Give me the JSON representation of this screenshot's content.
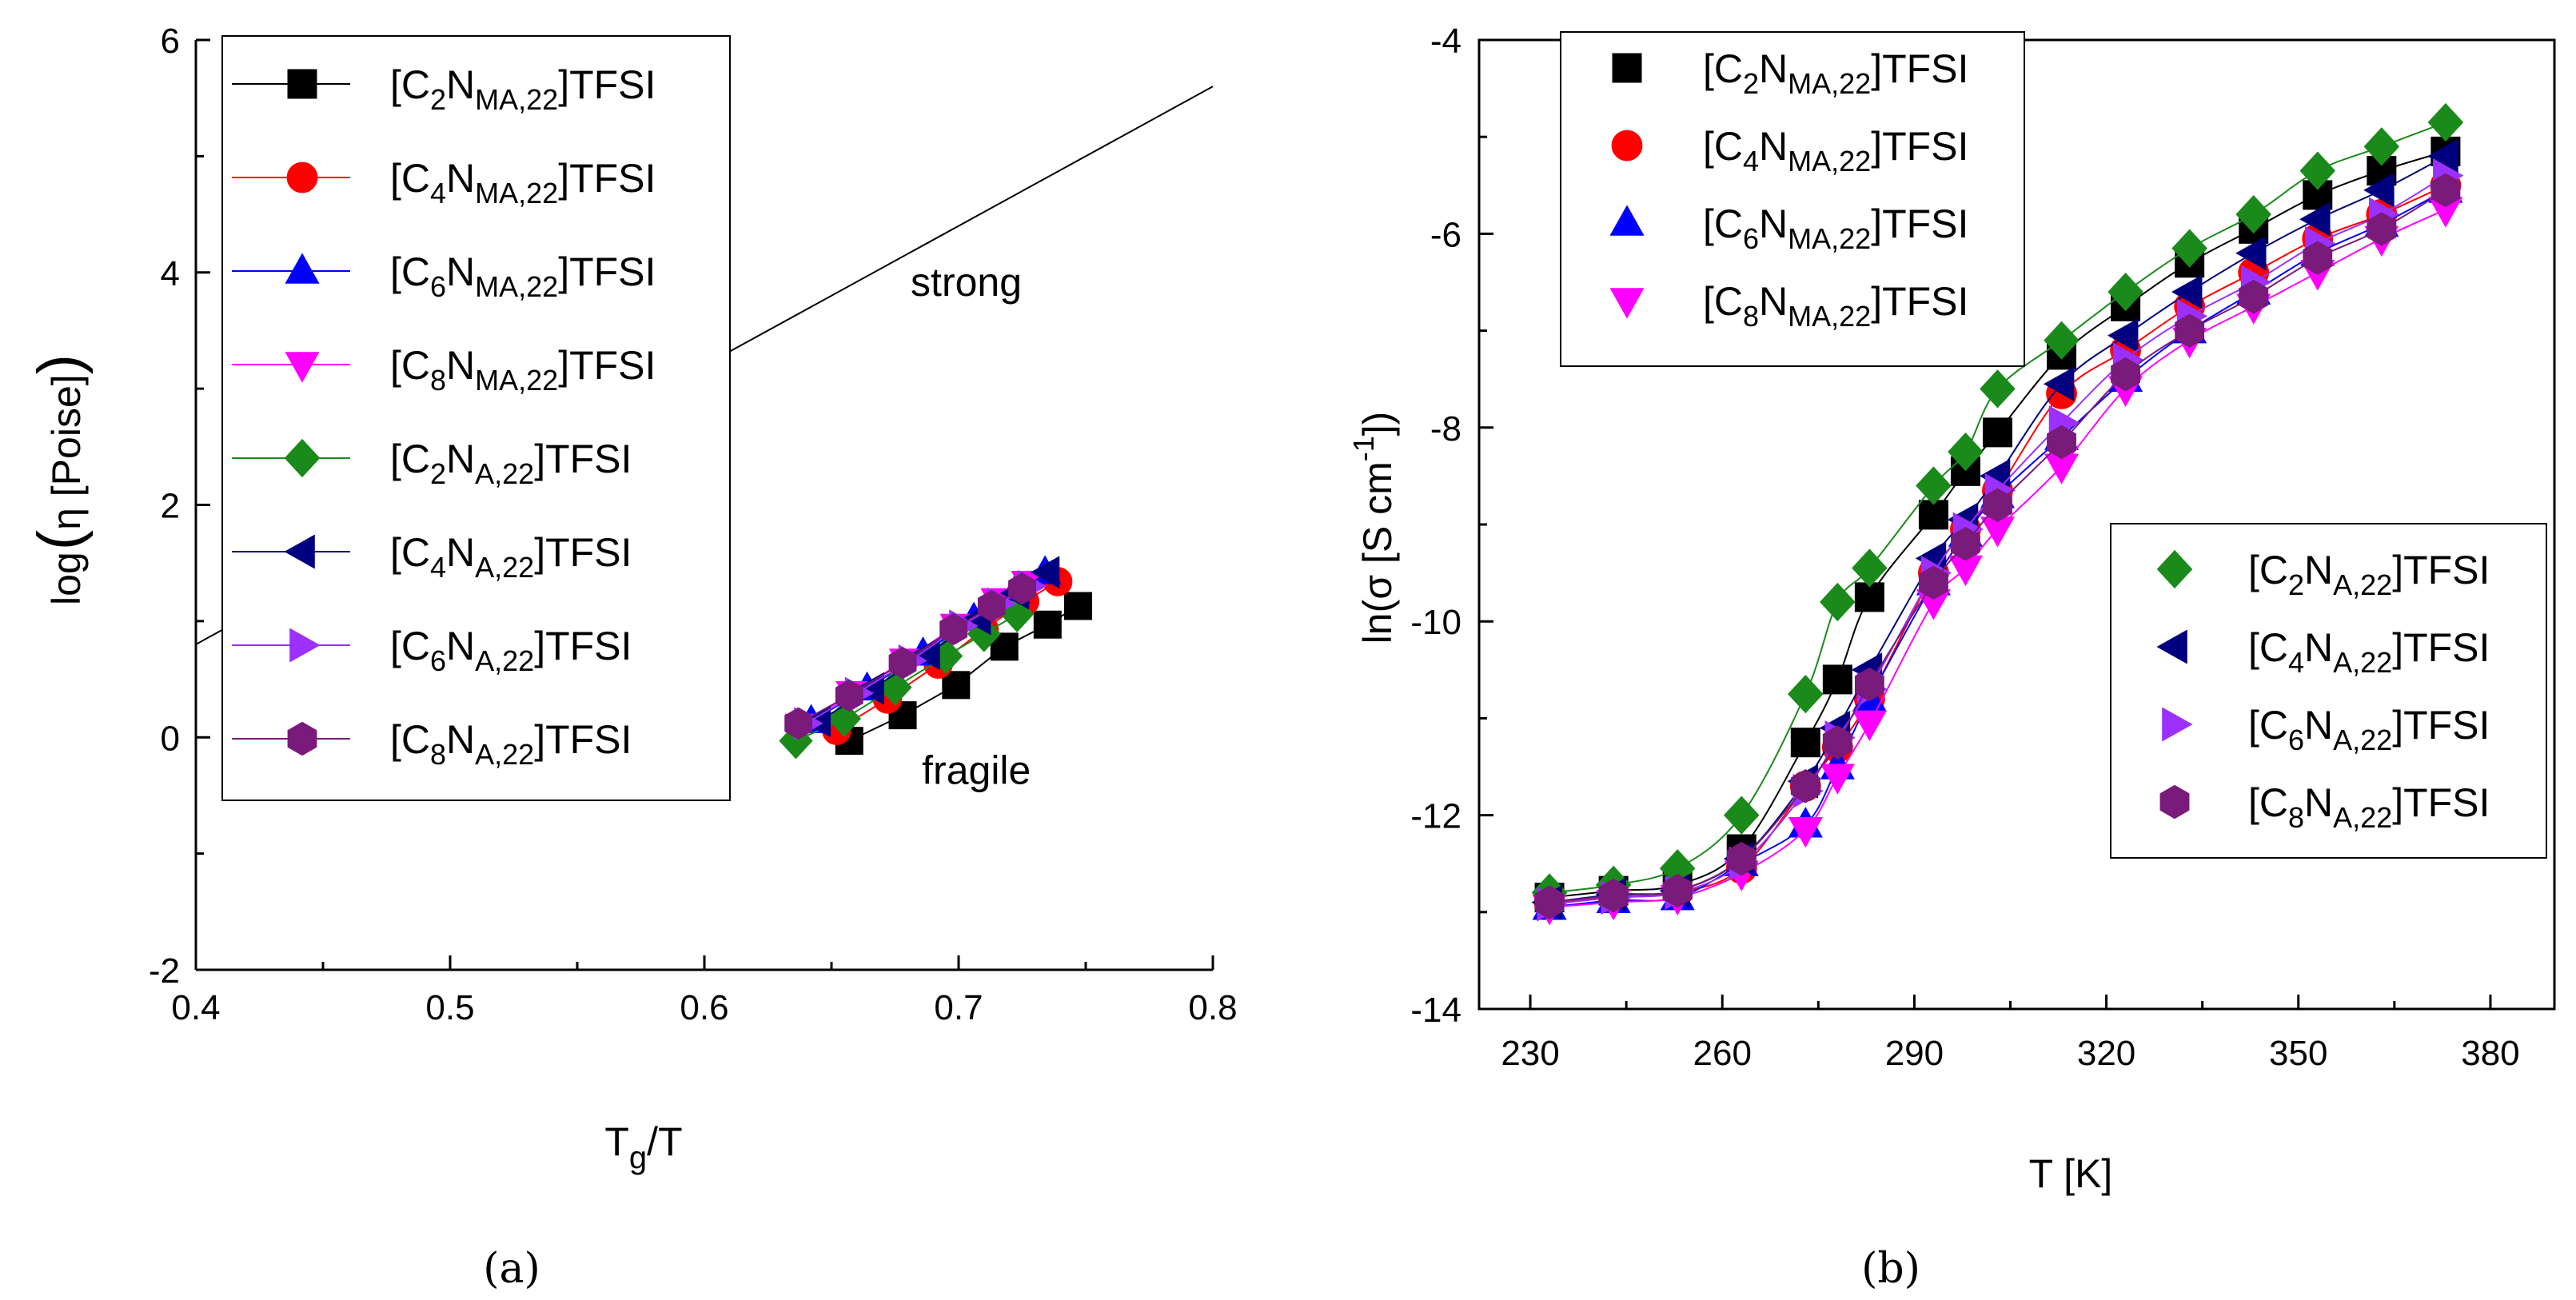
{
  "chart_data": [
    {
      "id": "a",
      "type": "scatter",
      "caption": "(a)",
      "xlabel": {
        "main": "T",
        "sub": "g",
        "rest": "/T"
      },
      "ylabel": {
        "prefix": "log",
        "inner": "η [Poise]"
      },
      "xlim": [
        0.4,
        0.8
      ],
      "ylim": [
        -2,
        6
      ],
      "xticks": [
        "0.4",
        "0.5",
        "0.6",
        "0.7",
        "0.8"
      ],
      "yticks": [
        "-2",
        "0",
        "2",
        "4",
        "6"
      ],
      "legend_position": "top-left",
      "annotations": [
        {
          "text": "strong",
          "x": 0.703,
          "y": 3.8
        },
        {
          "text": "fragile",
          "x": 0.707,
          "y": -0.4
        }
      ],
      "reference_line": {
        "label": "strong limit",
        "points": [
          [
            0.4,
            0.8
          ],
          [
            0.8,
            5.6
          ]
        ]
      },
      "series": [
        {
          "name": "[C2NMA,22]TFSI",
          "pre": "[C",
          "s1": "2",
          "mid": "N",
          "s2": "MA,22",
          "post": "]TFSI",
          "color": "#000000",
          "marker": "square",
          "x": [
            0.657,
            0.678,
            0.699,
            0.718,
            0.735,
            0.747
          ],
          "y": [
            -0.03,
            0.19,
            0.45,
            0.78,
            0.97,
            1.13
          ]
        },
        {
          "name": "[C4NMA,22]TFSI",
          "pre": "[C",
          "s1": "4",
          "mid": "N",
          "s2": "MA,22",
          "post": "]TFSI",
          "color": "#ff0000",
          "marker": "circle",
          "x": [
            0.652,
            0.672,
            0.692,
            0.71,
            0.726,
            0.739
          ],
          "y": [
            0.06,
            0.33,
            0.63,
            0.93,
            1.17,
            1.34
          ]
        },
        {
          "name": "[C6NMA,22]TFSI",
          "pre": "[C",
          "s1": "6",
          "mid": "N",
          "s2": "MA,22",
          "post": "]TFSI",
          "color": "#0000ff",
          "marker": "triangle-up",
          "x": [
            0.642,
            0.664,
            0.686,
            0.706,
            0.722,
            0.734
          ],
          "y": [
            0.14,
            0.42,
            0.72,
            1.02,
            1.25,
            1.42
          ]
        },
        {
          "name": "[C8NMA,22]TFSI",
          "pre": "[C",
          "s1": "8",
          "mid": "N",
          "s2": "MA,22",
          "post": "]TFSI",
          "color": "#ff00ff",
          "marker": "triangle-down",
          "x": [
            0.638,
            0.658,
            0.679,
            0.699,
            0.715,
            0.727
          ],
          "y": [
            0.1,
            0.38,
            0.66,
            0.96,
            1.18,
            1.33
          ]
        },
        {
          "name": "[C2NA,22]TFSI",
          "pre": "[C",
          "s1": "2",
          "mid": "N",
          "s2": "A,22",
          "post": "]TFSI",
          "color": "#1a8a1a",
          "marker": "diamond",
          "x": [
            0.636,
            0.655,
            0.675,
            0.695,
            0.71,
            0.723
          ],
          "y": [
            -0.03,
            0.16,
            0.43,
            0.7,
            0.89,
            1.06
          ]
        },
        {
          "name": "[C4NA,22]TFSI",
          "pre": "[C",
          "s1": "4",
          "mid": "N",
          "s2": "A,22",
          "post": "]TFSI",
          "color": "#000080",
          "marker": "triangle-left",
          "x": [
            0.645,
            0.666,
            0.688,
            0.708,
            0.723,
            0.735
          ],
          "y": [
            0.14,
            0.42,
            0.72,
            1.02,
            1.24,
            1.42
          ]
        },
        {
          "name": "[C6NA,22]TFSI",
          "pre": "[C",
          "s1": "6",
          "mid": "N",
          "s2": "A,22",
          "post": "]TFSI",
          "color": "#9b30ff",
          "marker": "triangle-right",
          "x": [
            0.64,
            0.66,
            0.681,
            0.701,
            0.716,
            0.728
          ],
          "y": [
            0.12,
            0.38,
            0.66,
            0.96,
            1.15,
            1.3
          ]
        },
        {
          "name": "[C8NA,22]TFSI",
          "pre": "[C",
          "s1": "8",
          "mid": "N",
          "s2": "A,22",
          "post": "]TFSI",
          "color": "#7a1a7a",
          "marker": "hexagon",
          "x": [
            0.637,
            0.657,
            0.678,
            0.698,
            0.713,
            0.725
          ],
          "y": [
            0.12,
            0.36,
            0.64,
            0.93,
            1.13,
            1.28
          ]
        }
      ]
    },
    {
      "id": "b",
      "type": "scatter",
      "caption": "(b)",
      "xlabel": {
        "text": "T [K]"
      },
      "ylabel": {
        "pre": "ln(σ [S cm",
        "sup": "-1",
        "post": "])"
      },
      "xlim": [
        222,
        390
      ],
      "ylim": [
        -14,
        -4
      ],
      "xticks": [
        "230",
        "260",
        "290",
        "320",
        "350",
        "380"
      ],
      "yticks": [
        "-14",
        "-12",
        "-10",
        "-8",
        "-6",
        "-4"
      ],
      "legend_positions": [
        "top-left",
        "middle-right"
      ],
      "x": [
        233,
        243,
        253,
        263,
        273,
        278,
        283,
        293,
        298,
        303,
        313,
        323,
        333,
        343,
        353,
        363,
        373
      ],
      "series": [
        {
          "name": "[C2NMA,22]TFSI",
          "pre": "[C",
          "s1": "2",
          "mid": "N",
          "s2": "MA,22",
          "post": "]TFSI",
          "color": "#000000",
          "marker": "square",
          "y": [
            -12.85,
            -12.78,
            -12.72,
            -12.35,
            -11.25,
            -10.6,
            -9.75,
            -8.9,
            -8.45,
            -8.05,
            -7.25,
            -6.75,
            -6.3,
            -5.95,
            -5.6,
            -5.35,
            -5.15
          ]
        },
        {
          "name": "[C4NMA,22]TFSI",
          "pre": "[C",
          "s1": "4",
          "mid": "N",
          "s2": "MA,22",
          "post": "]TFSI",
          "color": "#ff0000",
          "marker": "circle",
          "y": [
            -12.9,
            -12.85,
            -12.8,
            -12.55,
            -11.7,
            -11.3,
            -10.8,
            -9.5,
            -9.05,
            -8.65,
            -7.65,
            -7.2,
            -6.75,
            -6.4,
            -6.05,
            -5.8,
            -5.5
          ]
        },
        {
          "name": "[C6NMA,22]TFSI",
          "pre": "[C",
          "s1": "6",
          "mid": "N",
          "s2": "MA,22",
          "post": "]TFSI",
          "color": "#0000ff",
          "marker": "triangle-up",
          "y": [
            -12.95,
            -12.88,
            -12.85,
            -12.5,
            -12.1,
            -11.5,
            -10.8,
            -9.6,
            -9.1,
            -8.7,
            -8.1,
            -7.5,
            -7.0,
            -6.6,
            -6.2,
            -5.9,
            -5.55
          ]
        },
        {
          "name": "[C8NMA,22]TFSI",
          "pre": "[C",
          "s1": "8",
          "mid": "N",
          "s2": "MA,22",
          "post": "]TFSI",
          "color": "#ff00ff",
          "marker": "triangle-down",
          "y": [
            -12.95,
            -12.9,
            -12.85,
            -12.6,
            -12.15,
            -11.6,
            -11.05,
            -9.8,
            -9.45,
            -9.05,
            -8.4,
            -7.6,
            -7.1,
            -6.75,
            -6.4,
            -6.05,
            -5.75
          ]
        },
        {
          "name": "[C2NA,22]TFSI",
          "pre": "[C",
          "s1": "2",
          "mid": "N",
          "s2": "A,22",
          "post": "]TFSI",
          "color": "#1a8a1a",
          "marker": "diamond",
          "y": [
            -12.8,
            -12.72,
            -12.55,
            -12.0,
            -10.75,
            -9.8,
            -9.45,
            -8.6,
            -8.25,
            -7.6,
            -7.1,
            -6.6,
            -6.15,
            -5.8,
            -5.35,
            -5.1,
            -4.85
          ]
        },
        {
          "name": "[C4NA,22]TFSI",
          "pre": "[C",
          "s1": "4",
          "mid": "N",
          "s2": "A,22",
          "post": "]TFSI",
          "color": "#000080",
          "marker": "triangle-left",
          "y": [
            -12.9,
            -12.82,
            -12.78,
            -12.45,
            -11.65,
            -11.1,
            -10.5,
            -9.35,
            -8.95,
            -8.5,
            -7.55,
            -7.05,
            -6.6,
            -6.2,
            -5.85,
            -5.55,
            -5.2
          ]
        },
        {
          "name": "[C6NA,22]TFSI",
          "pre": "[C",
          "s1": "6",
          "mid": "N",
          "s2": "A,22",
          "post": "]TFSI",
          "color": "#9b30ff",
          "marker": "triangle-right",
          "y": [
            -12.92,
            -12.85,
            -12.8,
            -12.5,
            -11.75,
            -11.2,
            -10.7,
            -9.5,
            -9.05,
            -8.65,
            -7.95,
            -7.3,
            -6.85,
            -6.5,
            -6.1,
            -5.8,
            -5.4
          ]
        },
        {
          "name": "[C8NA,22]TFSI",
          "pre": "[C",
          "s1": "8",
          "mid": "N",
          "s2": "A,22",
          "post": "]TFSI",
          "color": "#7a1a7a",
          "marker": "hexagon",
          "y": [
            -12.9,
            -12.83,
            -12.78,
            -12.45,
            -11.7,
            -11.25,
            -10.65,
            -9.6,
            -9.2,
            -8.8,
            -8.15,
            -7.45,
            -7.0,
            -6.65,
            -6.25,
            -5.95,
            -5.55
          ]
        }
      ]
    }
  ]
}
